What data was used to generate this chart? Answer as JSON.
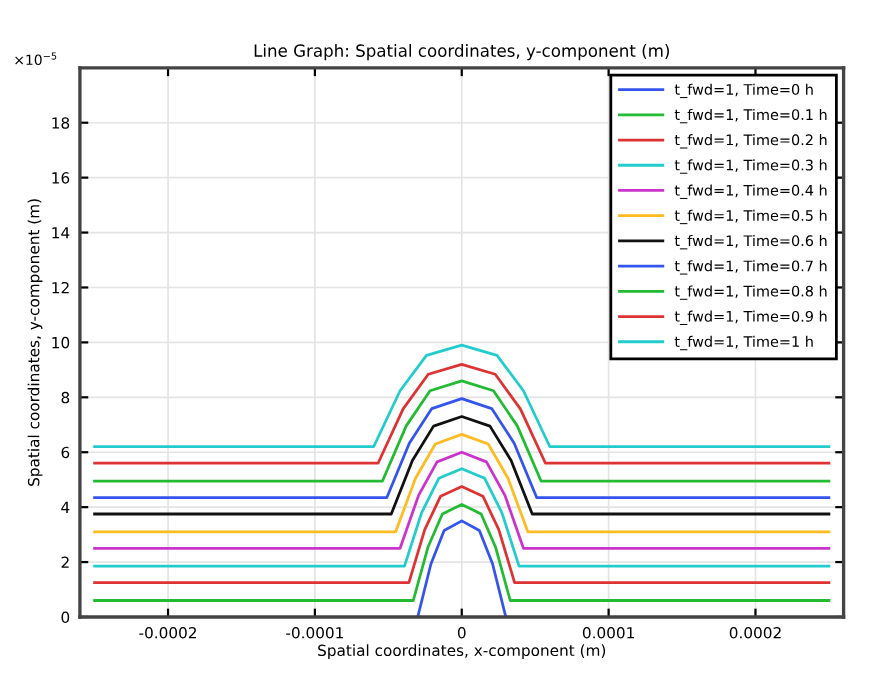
{
  "chart_data": {
    "type": "line",
    "title": "Line Graph: Spatial coordinates, y-component (m)",
    "xlabel": "Spatial coordinates, x-component (m)",
    "ylabel": "Spatial coordinates, y-component (m)",
    "annotations": [
      "×10$^{−5}$"
    ],
    "xlim": [
      -0.00026,
      0.00026
    ],
    "xticks": [
      -0.0002,
      -0.0001,
      0,
      0.0001,
      0.0002
    ],
    "ylim": [
      0,
      20
    ],
    "yticks": [
      0,
      2,
      4,
      6,
      8,
      10,
      12,
      14,
      16,
      18
    ],
    "grid": true,
    "legend": "top right",
    "line_style": "solid",
    "marker": "none",
    "series": [
      {
        "name": "t_fwd=1, Time=0 h",
        "color": "#3355ee",
        "x": [
          -3e-05,
          -2.1e-05,
          -1.2e-05,
          0,
          1.2e-05,
          2.1e-05,
          3e-05
        ],
        "values": [
          0,
          1.93,
          3.15,
          3.5,
          3.15,
          1.93,
          0
        ]
      },
      {
        "name": "t_fwd=1, Time=0.1 h",
        "color": "#22bb33",
        "x": [
          -0.00025,
          -3.3e-05,
          -2.31e-05,
          -1.32e-05,
          0,
          1.32e-05,
          2.31e-05,
          3.3e-05,
          0.00025
        ],
        "values": [
          0.6,
          0.6,
          2.53,
          3.75,
          4.1,
          3.75,
          2.53,
          0.6,
          0.6
        ]
      },
      {
        "name": "t_fwd=1, Time=0.2 h",
        "color": "#dd3333",
        "x": [
          -0.00025,
          -3.6e-05,
          -2.52e-05,
          -1.44e-05,
          0,
          1.44e-05,
          2.52e-05,
          3.6e-05,
          0.00025
        ],
        "values": [
          1.25,
          1.25,
          3.18,
          4.4,
          4.75,
          4.4,
          3.18,
          1.25,
          1.25
        ]
      },
      {
        "name": "t_fwd=1, Time=0.3 h",
        "color": "#22cccc",
        "x": [
          -0.00025,
          -3.9e-05,
          -2.73e-05,
          -1.56e-05,
          0,
          1.56e-05,
          2.73e-05,
          3.9e-05,
          0.00025
        ],
        "values": [
          1.85,
          1.85,
          3.8,
          5.05,
          5.4,
          5.05,
          3.8,
          1.85,
          1.85
        ]
      },
      {
        "name": "t_fwd=1, Time=0.4 h",
        "color": "#cc33cc",
        "x": [
          -0.00025,
          -4.2e-05,
          -2.94e-05,
          -1.68e-05,
          0,
          1.68e-05,
          2.94e-05,
          4.2e-05,
          0.00025
        ],
        "values": [
          2.5,
          2.5,
          4.43,
          5.65,
          6.0,
          5.65,
          4.43,
          2.5,
          2.5
        ]
      },
      {
        "name": "t_fwd=1, Time=0.5 h",
        "color": "#ffbb22",
        "x": [
          -0.00025,
          -4.5e-05,
          -3.15e-05,
          -1.8e-05,
          0,
          1.8e-05,
          3.15e-05,
          4.5e-05,
          0.00025
        ],
        "values": [
          3.1,
          3.1,
          5.05,
          6.3,
          6.65,
          6.3,
          5.05,
          3.1,
          3.1
        ]
      },
      {
        "name": "t_fwd=1, Time=0.6 h",
        "color": "#111111",
        "x": [
          -0.00025,
          -4.8e-05,
          -3.36e-05,
          -1.92e-05,
          0,
          1.92e-05,
          3.36e-05,
          4.8e-05,
          0.00025
        ],
        "values": [
          3.75,
          3.75,
          5.7,
          6.95,
          7.3,
          6.95,
          5.7,
          3.75,
          3.75
        ]
      },
      {
        "name": "t_fwd=1, Time=0.7 h",
        "color": "#3355ee",
        "x": [
          -0.00025,
          -5.1e-05,
          -3.57e-05,
          -2.04e-05,
          0,
          2.04e-05,
          3.57e-05,
          5.1e-05,
          0.00025
        ],
        "values": [
          4.35,
          4.35,
          6.33,
          7.59,
          7.95,
          7.59,
          6.33,
          4.35,
          4.35
        ]
      },
      {
        "name": "t_fwd=1, Time=0.8 h",
        "color": "#22bb33",
        "x": [
          -0.00025,
          -5.4e-05,
          -3.78e-05,
          -2.16e-05,
          0,
          2.16e-05,
          3.78e-05,
          5.4e-05,
          0.00025
        ],
        "values": [
          4.95,
          4.95,
          6.96,
          8.24,
          8.6,
          8.24,
          6.96,
          4.95,
          4.95
        ]
      },
      {
        "name": "t_fwd=1, Time=0.9 h",
        "color": "#dd3333",
        "x": [
          -0.00025,
          -5.7e-05,
          -3.99e-05,
          -2.28e-05,
          0,
          2.28e-05,
          3.99e-05,
          5.7e-05,
          0.00025
        ],
        "values": [
          5.6,
          5.6,
          7.58,
          8.84,
          9.2,
          8.84,
          7.58,
          5.6,
          5.6
        ]
      },
      {
        "name": "t_fwd=1, Time=1 h",
        "color": "#22cccc",
        "x": [
          -0.00025,
          -6e-05,
          -4.2e-05,
          -2.4e-05,
          0,
          2.4e-05,
          4.2e-05,
          6e-05,
          0.00025
        ],
        "values": [
          6.2,
          6.2,
          8.24,
          9.53,
          9.9,
          9.53,
          8.24,
          6.2,
          6.2
        ]
      }
    ]
  }
}
